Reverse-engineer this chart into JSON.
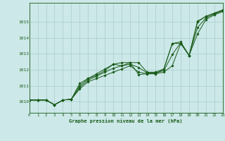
{
  "xlabel": "Graphe pression niveau de la mer (hPa)",
  "x_ticks": [
    0,
    1,
    2,
    3,
    4,
    5,
    6,
    7,
    8,
    9,
    10,
    11,
    12,
    13,
    14,
    15,
    16,
    17,
    18,
    19,
    20,
    21,
    22,
    23
  ],
  "ylim": [
    1009.3,
    1016.2
  ],
  "yticks": [
    1010,
    1011,
    1012,
    1013,
    1014,
    1015
  ],
  "bg_color": "#cce8e8",
  "grid_color": "#aacccc",
  "line_color": "#1a5c1a",
  "series": {
    "s1": [
      1010.1,
      1010.1,
      1010.1,
      1009.8,
      1010.1,
      1010.15,
      1010.8,
      1011.25,
      1011.45,
      1011.65,
      1011.85,
      1012.05,
      1012.25,
      1011.85,
      1011.75,
      1011.75,
      1011.85,
      1012.25,
      1013.65,
      1012.9,
      1014.25,
      1015.15,
      1015.45,
      1015.65
    ],
    "s2": [
      1010.1,
      1010.1,
      1010.1,
      1009.8,
      1010.1,
      1010.15,
      1011.0,
      1011.45,
      1011.75,
      1012.05,
      1012.35,
      1012.45,
      1012.45,
      1012.45,
      1011.85,
      1011.85,
      1012.05,
      1013.65,
      1013.75,
      1012.9,
      1015.05,
      1015.35,
      1015.55,
      1015.75
    ],
    "s3": [
      1010.1,
      1010.1,
      1010.1,
      1009.8,
      1010.1,
      1010.15,
      1010.9,
      1011.35,
      1011.6,
      1011.85,
      1012.1,
      1012.25,
      1012.35,
      1012.15,
      1011.8,
      1011.8,
      1011.95,
      1012.95,
      1013.7,
      1012.9,
      1014.65,
      1015.25,
      1015.5,
      1015.7
    ],
    "s4": [
      1010.1,
      1010.1,
      1010.1,
      1009.8,
      1010.1,
      1010.15,
      1011.15,
      1011.45,
      1011.65,
      1011.95,
      1012.35,
      1012.25,
      1012.45,
      1011.7,
      1011.75,
      1011.75,
      1012.05,
      1013.65,
      1013.65,
      1012.9,
      1015.0,
      1015.35,
      1015.55,
      1015.75
    ]
  }
}
